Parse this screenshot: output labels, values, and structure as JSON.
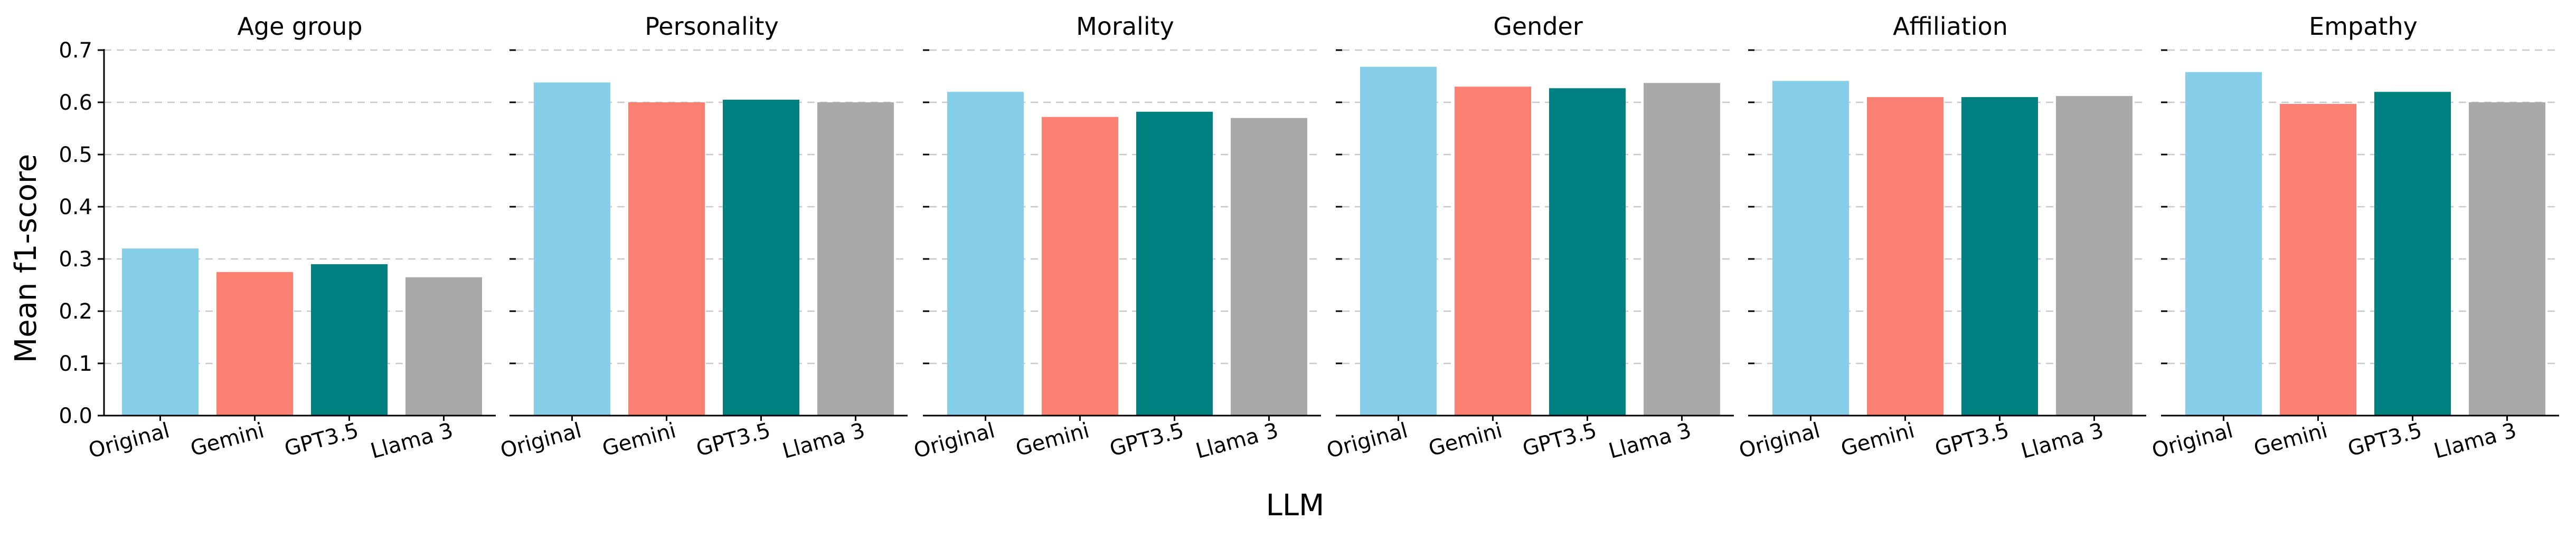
{
  "chart_data": {
    "type": "bar",
    "xlabel": "LLM",
    "ylabel": "Mean f1-score",
    "ylim": [
      0,
      0.7
    ],
    "yticks": [
      0.0,
      0.1,
      0.2,
      0.3,
      0.4,
      0.5,
      0.6,
      0.7
    ],
    "ytick_labels": [
      "0.0",
      "0.1",
      "0.2",
      "0.3",
      "0.4",
      "0.5",
      "0.6",
      "0.7"
    ],
    "grid": "horizontal dashed",
    "categories": [
      "Original",
      "Gemini",
      "GPT3.5",
      "Llama 3"
    ],
    "colors": [
      "#87CEEB",
      "#FA8072",
      "#008080",
      "#A9A9A9"
    ],
    "panels": [
      {
        "title": "Age group",
        "values": [
          0.32,
          0.275,
          0.29,
          0.265
        ]
      },
      {
        "title": "Personality",
        "values": [
          0.638,
          0.6,
          0.605,
          0.6
        ]
      },
      {
        "title": "Morality",
        "values": [
          0.62,
          0.572,
          0.582,
          0.57
        ]
      },
      {
        "title": "Gender",
        "values": [
          0.668,
          0.63,
          0.627,
          0.637
        ]
      },
      {
        "title": "Affiliation",
        "values": [
          0.641,
          0.61,
          0.61,
          0.612
        ]
      },
      {
        "title": "Empathy",
        "values": [
          0.658,
          0.597,
          0.62,
          0.6
        ]
      }
    ]
  }
}
